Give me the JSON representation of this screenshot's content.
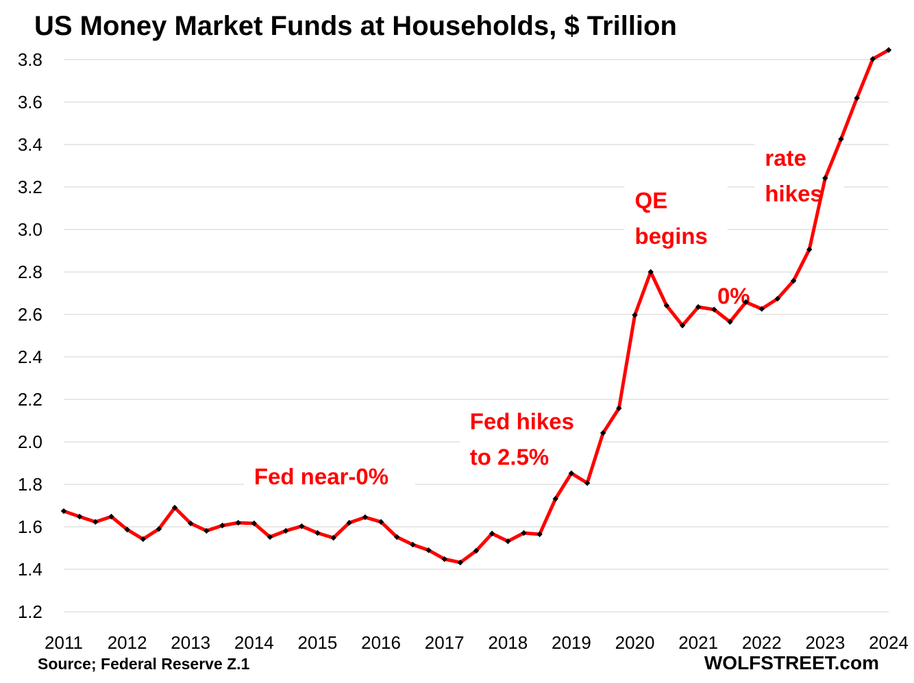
{
  "chart_data": {
    "type": "line",
    "title": "US Money Market Funds at Households, $ Trillion",
    "xlabel": "",
    "ylabel": "",
    "xlim": [
      2011,
      2024
    ],
    "ylim": [
      1.2,
      3.8
    ],
    "grid": true,
    "x_ticks": [
      "2011",
      "2012",
      "2013",
      "2014",
      "2015",
      "2016",
      "2017",
      "2018",
      "2019",
      "2020",
      "2021",
      "2022",
      "2023",
      "2024"
    ],
    "y_ticks": [
      "1.2",
      "1.4",
      "1.6",
      "1.8",
      "2.0",
      "2.2",
      "2.4",
      "2.6",
      "2.8",
      "3.0",
      "3.2",
      "3.4",
      "3.6",
      "3.8"
    ],
    "series": [
      {
        "name": "Money Market Funds at Households",
        "color": "#ff0000",
        "marker_color": "#000000",
        "x_start": 2011,
        "x_step": 0.25,
        "values": [
          1.674,
          1.648,
          1.623,
          1.648,
          1.587,
          1.542,
          1.59,
          1.69,
          1.616,
          1.581,
          1.606,
          1.619,
          1.616,
          1.552,
          1.581,
          1.603,
          1.571,
          1.548,
          1.619,
          1.645,
          1.623,
          1.552,
          1.516,
          1.49,
          1.448,
          1.432,
          1.487,
          1.568,
          1.532,
          1.571,
          1.565,
          1.732,
          1.852,
          1.806,
          2.042,
          2.158,
          2.597,
          2.8,
          2.642,
          2.548,
          2.635,
          2.623,
          2.565,
          2.658,
          2.626,
          2.674,
          2.758,
          2.906,
          3.242,
          3.426,
          3.619,
          3.803,
          3.845
        ]
      }
    ],
    "annotations": [
      {
        "lines": [
          "Fed near-0%"
        ],
        "x": 2014.0,
        "y": 1.8
      },
      {
        "lines": [
          "Fed hikes",
          "to 2.5%"
        ],
        "x": 2017.4,
        "y": 2.06
      },
      {
        "lines": [
          "QE",
          "begins"
        ],
        "x": 2020.0,
        "y": 3.1
      },
      {
        "lines": [
          "0%"
        ],
        "x": 2021.3,
        "y": 2.65
      },
      {
        "lines": [
          "rate",
          "hikes"
        ],
        "x": 2022.05,
        "y": 3.3
      }
    ],
    "source": "Source; Federal Reserve Z.1",
    "watermark": "WOLFSTREET.com"
  }
}
